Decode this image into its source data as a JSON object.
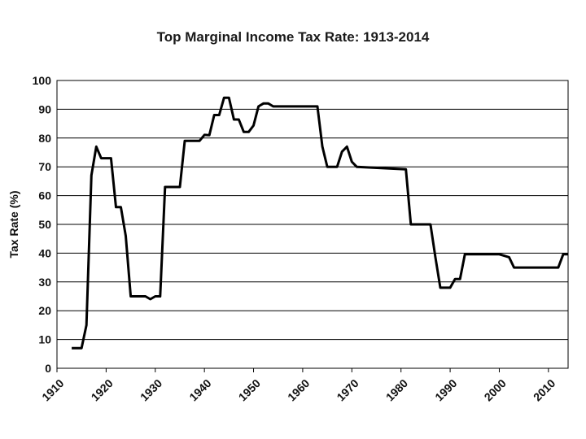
{
  "chart_data": {
    "type": "line",
    "title": "Top Marginal Income Tax Rate: 1913-2014",
    "xlabel": "",
    "ylabel": "Tax Rate (%)",
    "xlim": [
      1910,
      2014
    ],
    "ylim": [
      0,
      100
    ],
    "x_ticks": [
      1910,
      1920,
      1930,
      1940,
      1950,
      1960,
      1970,
      1980,
      1990,
      2000,
      2010
    ],
    "y_ticks": [
      0,
      10,
      20,
      30,
      40,
      50,
      60,
      70,
      80,
      90,
      100
    ],
    "grid": "horizontal",
    "series": [
      {
        "name": "Top Marginal Income Tax Rate",
        "color": "#000000",
        "x": [
          1913,
          1915,
          1916,
          1917,
          1918,
          1919,
          1920,
          1921,
          1922,
          1923,
          1924,
          1925,
          1926,
          1927,
          1928,
          1929,
          1930,
          1931,
          1932,
          1933,
          1934,
          1935,
          1936,
          1937,
          1938,
          1939,
          1940,
          1941,
          1942,
          1943,
          1944,
          1945,
          1946,
          1947,
          1948,
          1949,
          1950,
          1951,
          1952,
          1953,
          1954,
          1963,
          1964,
          1965,
          1967,
          1968,
          1969,
          1970,
          1971,
          1981,
          1982,
          1983,
          1986,
          1987,
          1988,
          1990,
          1991,
          1992,
          1993,
          2000,
          2001,
          2002,
          2003,
          2012,
          2013,
          2014
        ],
        "y": [
          7,
          7,
          15,
          67,
          77,
          73,
          73,
          73,
          56,
          56,
          46,
          25,
          25,
          25,
          25,
          24,
          25,
          25,
          63,
          63,
          63,
          63,
          79,
          79,
          79,
          79,
          81.1,
          81,
          88,
          88,
          94,
          94,
          86.45,
          86.45,
          82.13,
          82.13,
          84.36,
          91,
          92,
          92,
          91,
          91,
          77,
          70,
          70,
          75.25,
          77,
          71.75,
          70,
          69.13,
          50,
          50,
          50,
          38.5,
          28,
          28,
          31,
          31,
          39.6,
          39.6,
          39.1,
          38.6,
          35,
          35,
          39.6,
          39.6
        ]
      }
    ]
  }
}
